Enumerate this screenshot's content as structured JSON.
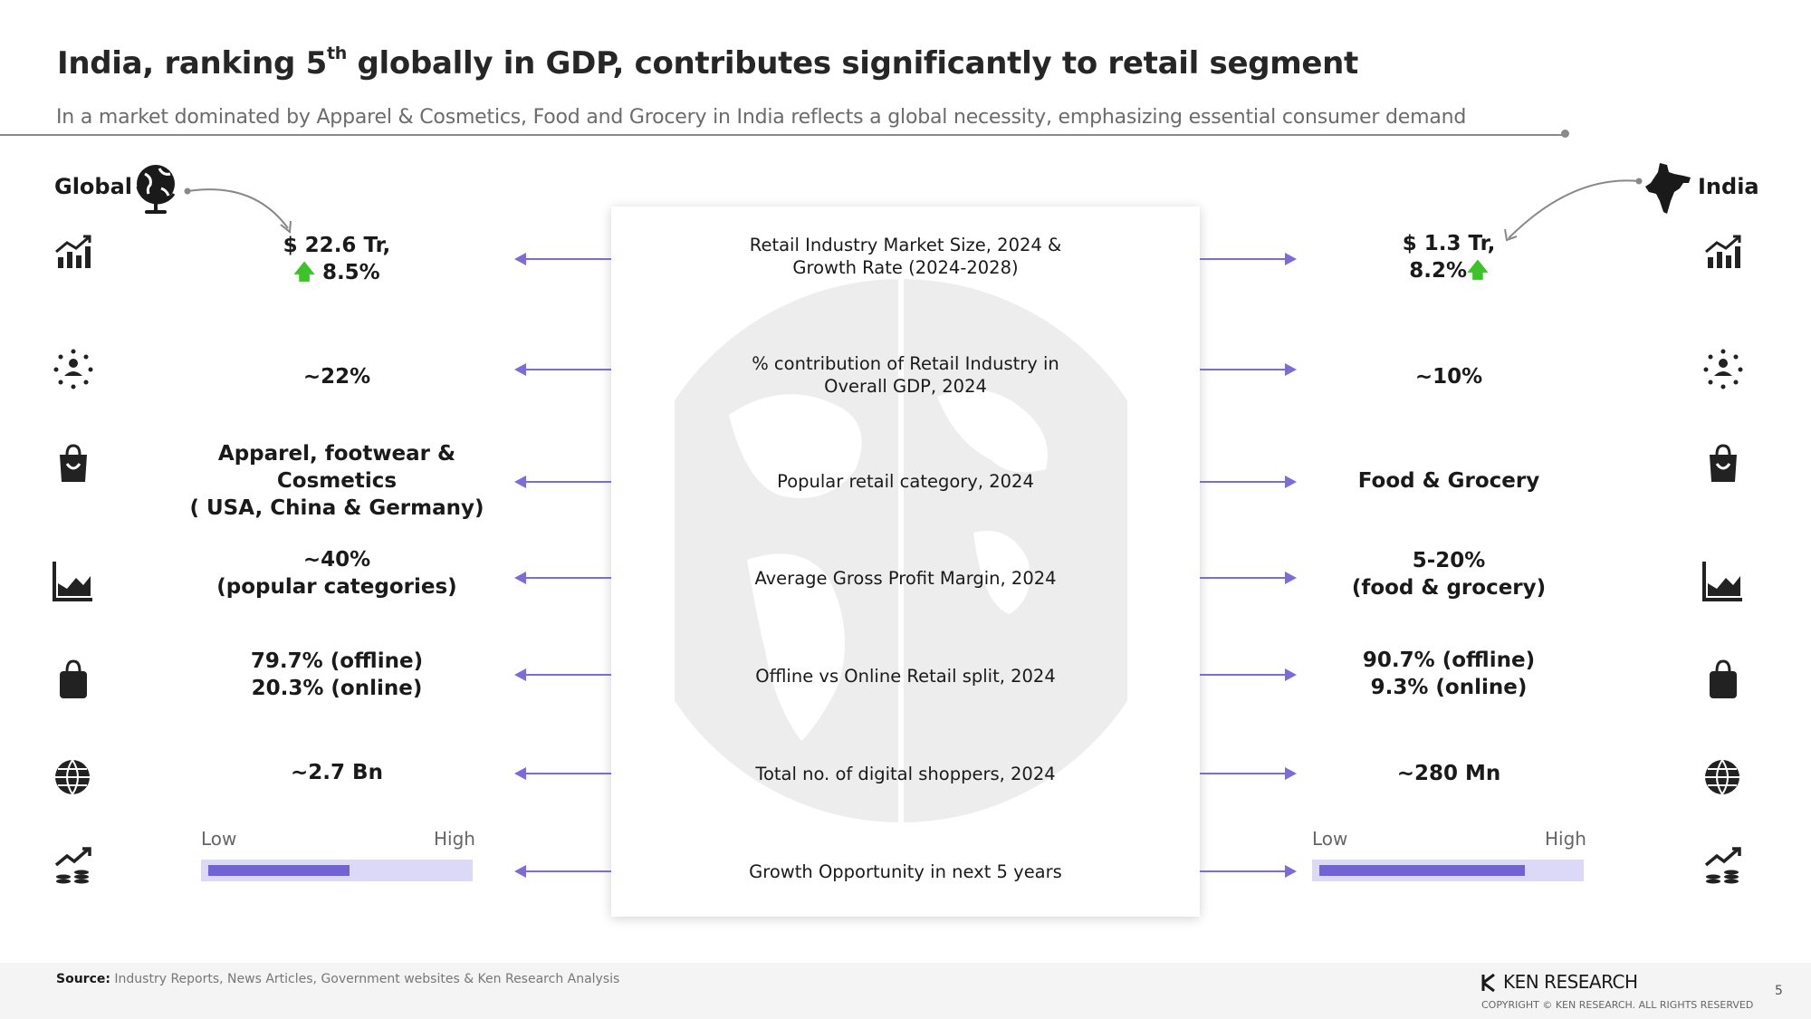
{
  "header": {
    "title_pre": "India, ranking 5",
    "title_sup": "th",
    "title_post": " globally in GDP, contributes significantly to retail segment",
    "subtitle": "In a market dominated by Apparel & Cosmetics, Food and Grocery in India reflects a global necessity, emphasizing essential consumer demand"
  },
  "sides": {
    "left_label": "Global",
    "right_label": "India"
  },
  "rows": [
    {
      "metric_line1": "Retail Industry Market Size, 2024 &",
      "metric_line2": "Growth Rate (2024-2028)",
      "global_line1": "$ 22.6 Tr,",
      "global_line2": "8.5%",
      "india_line1": "$ 1.3 Tr,",
      "india_line2": "8.2%"
    },
    {
      "metric_line1": "% contribution of Retail Industry in",
      "metric_line2": "Overall GDP, 2024",
      "global": "~22%",
      "india": "~10%"
    },
    {
      "metric": "Popular retail category, 2024",
      "global_line1": "Apparel, footwear &",
      "global_line2": "Cosmetics",
      "global_line3": "( USA, China & Germany)",
      "india": "Food & Grocery"
    },
    {
      "metric": "Average Gross Profit Margin, 2024",
      "global_line1": "~40%",
      "global_line2": "(popular categories)",
      "india_line1": "5-20%",
      "india_line2": "(food & grocery)"
    },
    {
      "metric": "Offline vs Online Retail split, 2024",
      "global_line1": "79.7% (offline)",
      "global_line2": "20.3% (online)",
      "india_line1": "90.7% (offline)",
      "india_line2": "9.3% (online)"
    },
    {
      "metric": "Total no. of digital shoppers, 2024",
      "global": "~2.7 Bn",
      "india": "~280 Mn"
    },
    {
      "metric": "Growth Opportunity in next 5 years",
      "scale_low": "Low",
      "scale_high": "High",
      "global_level": 0.55,
      "india_level": 0.8
    }
  ],
  "icons": [
    "growth-chart-icon",
    "network-people-icon",
    "shopping-bag-icon",
    "area-chart-icon",
    "shopping-bag-solid-icon",
    "globe-wifi-icon",
    "rising-coins-icon"
  ],
  "colors": {
    "accent": "#7b6cd9",
    "bar_fill": "#7063d6",
    "bar_track": "#dcd8f8",
    "up_arrow": "#3ec22a"
  },
  "footer": {
    "source_label": "Source:",
    "source_text": "Industry Reports, News Articles, Government websites & Ken Research Analysis",
    "brand": "KEN RESEARCH",
    "copyright": "COPYRIGHT © KEN RESEARCH. ALL RIGHTS RESERVED",
    "page_number": "5"
  }
}
